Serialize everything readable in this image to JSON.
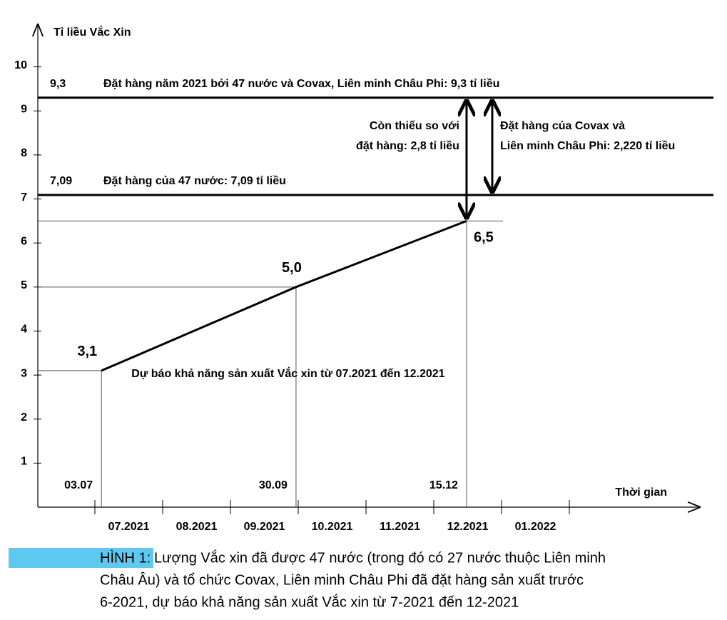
{
  "chart_data": {
    "type": "line",
    "y_label": "Tỉ liều Vắc Xin",
    "x_label": "Thời gian",
    "categories": [
      "07.2021",
      "08.2021",
      "09.2021",
      "10.2021",
      "11.2021",
      "12.2021",
      "01.2022"
    ],
    "x": [
      "03.07",
      "30.09",
      "15.12"
    ],
    "series": [
      {
        "name": "Dự báo khả năng sản xuất Vắc xin từ 07.2021 đến 12.2021",
        "color": "#000000",
        "values": [
          3.1,
          5.0,
          6.5
        ],
        "value_labels": [
          "3,1",
          "5,0",
          "6,5"
        ]
      }
    ],
    "ylim": [
      0,
      11
    ],
    "yticks": [
      1,
      2,
      3,
      4,
      5,
      6,
      7,
      8,
      9,
      10
    ],
    "reference_lines": [
      {
        "value": 9.3,
        "value_label": "9,3",
        "label": "Đặt hàng năm 2021 bởi 47 nước và Covax, Liên minh Châu Phi: 9,3 tỉ liều"
      },
      {
        "value": 7.09,
        "value_label": "7,09",
        "label": "Đặt hàng của 47 nước: 7,09 tỉ liều"
      }
    ],
    "arrows": [
      {
        "from": 9.3,
        "to": 6.5,
        "text": [
          "Còn thiếu so với",
          "đặt hàng: 2,8 tỉ liều"
        ]
      },
      {
        "from": 9.3,
        "to": 7.09,
        "text": [
          "Đặt hàng của Covax và",
          "Liên minh Châu Phi: 2,220 tỉ liều"
        ]
      }
    ]
  },
  "caption": {
    "label": "HÌNH 1:",
    "lines": [
      "Lượng Vắc xin đã được 47 nước (trong đó có 27 nước thuộc Liên minh",
      "Châu Âu) và tổ chức Covax, Liên minh Châu Phi đã đặt hàng sản xuất trước",
      "6-2021, dự báo khả năng sản xuất Vắc xin từ 7-2021 đến 12-2021"
    ]
  }
}
